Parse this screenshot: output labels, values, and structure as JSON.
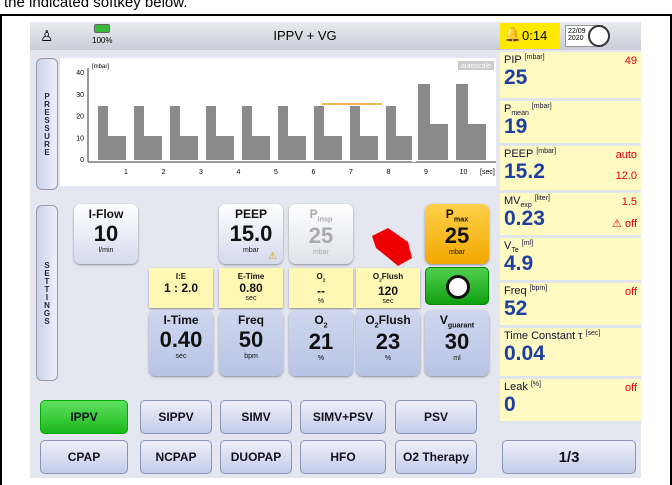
{
  "instruction": "the indicated softkey below.",
  "header": {
    "title": "IPPV + VG",
    "battery": "100%",
    "alarm_time": "0:14",
    "date_day": "22/09",
    "date_year": "2020"
  },
  "pressure_panel": {
    "tab": "PRESSURE",
    "unit": "[mbar]",
    "autoscale": "autoscale",
    "y_labels": [
      "40",
      "30",
      "20",
      "10",
      "0"
    ],
    "x_labels": [
      "1",
      "2",
      "3",
      "4",
      "5",
      "6",
      "7",
      "8",
      "9",
      "10"
    ],
    "x_unit": "[sec]"
  },
  "settings": {
    "tab": "SETTINGS",
    "knobs": [
      {
        "label": "I-Flow",
        "sub": "",
        "value": "10",
        "unit": "l/min",
        "style": "big",
        "col": 0,
        "row": 0
      },
      {
        "label": "PEEP",
        "sub": "",
        "value": "15.0",
        "unit": "mbar",
        "warn": "⚠",
        "style": "big",
        "col": 2,
        "row": 0
      },
      {
        "label": "P",
        "sub": "insp",
        "value": "25",
        "unit": "mbar",
        "style": "grey",
        "col": 3,
        "row": 0
      },
      {
        "label": "P",
        "sub": "max",
        "value": "25",
        "unit": "mbar",
        "style": "orange",
        "col": 5,
        "row": 0
      },
      {
        "label": "I:E",
        "sub": "",
        "value": "1 : 2.0",
        "unit": "",
        "style": "small",
        "col": 1,
        "row": 1
      },
      {
        "label": "E-Time",
        "sub": "",
        "value": "0.80",
        "unit": "sec",
        "style": "small",
        "col": 2,
        "row": 1
      },
      {
        "label": "O",
        "sub": "2",
        "value": "--",
        "unit": "%",
        "style": "small",
        "col": 3,
        "row": 1
      },
      {
        "label": "O",
        "sub": "2",
        "label2": "Flush",
        "value": "120",
        "unit": "sec",
        "style": "small",
        "col": 4,
        "row": 1
      },
      {
        "label": "I-Time",
        "sub": "",
        "value": "0.40",
        "unit": "sec",
        "style": "low",
        "col": 1,
        "row": 2
      },
      {
        "label": "Freq",
        "sub": "",
        "value": "50",
        "unit": "bpm",
        "style": "low",
        "col": 2,
        "row": 2
      },
      {
        "label": "O",
        "sub": "2",
        "value": "21",
        "unit": "%",
        "style": "low",
        "col": 3,
        "row": 2
      },
      {
        "label": "O",
        "sub": "2",
        "label2": "Flush",
        "value": "23",
        "unit": "%",
        "style": "low",
        "col": 4,
        "row": 2
      },
      {
        "label": "V",
        "sub": "guarant",
        "value": "30",
        "unit": "ml",
        "style": "low",
        "col": 5,
        "row": 2
      }
    ]
  },
  "modes": [
    [
      "IPPV",
      "SIPPV",
      "SIMV",
      "SIMV+PSV",
      "PSV"
    ],
    [
      "CPAP",
      "NCPAP",
      "DUOPAP",
      "HFO",
      "O2 Therapy"
    ]
  ],
  "measurements": [
    {
      "label": "PIP",
      "sub": "",
      "unit": "[mbar]",
      "value": "25",
      "limit_hi": "49"
    },
    {
      "label": "P",
      "sub": "mean",
      "unit": "[mbar]",
      "value": "19"
    },
    {
      "label": "PEEP",
      "sub": "",
      "unit": "[mbar]",
      "value": "15.2",
      "limit_hi": "auto",
      "limit_lo": "12.0"
    },
    {
      "label": "MV",
      "sub": "exp",
      "unit": "[liter]",
      "value": "0.23",
      "limit_hi": "1.5",
      "limit_lo": "⚠ off"
    },
    {
      "label": "V",
      "sub": "Te",
      "unit": "[ml]",
      "value": "4.9"
    },
    {
      "label": "Freq",
      "sub": "",
      "unit": "[bpm]",
      "value": "52",
      "limit_hi": "off"
    },
    {
      "label": "Time Constant τ",
      "sub": "",
      "unit": "[sec]",
      "value": "0.04"
    },
    {
      "label": "Leak",
      "sub": "",
      "unit": "[%]",
      "value": "0",
      "limit_hi": "off"
    }
  ],
  "page_button": "1/3"
}
